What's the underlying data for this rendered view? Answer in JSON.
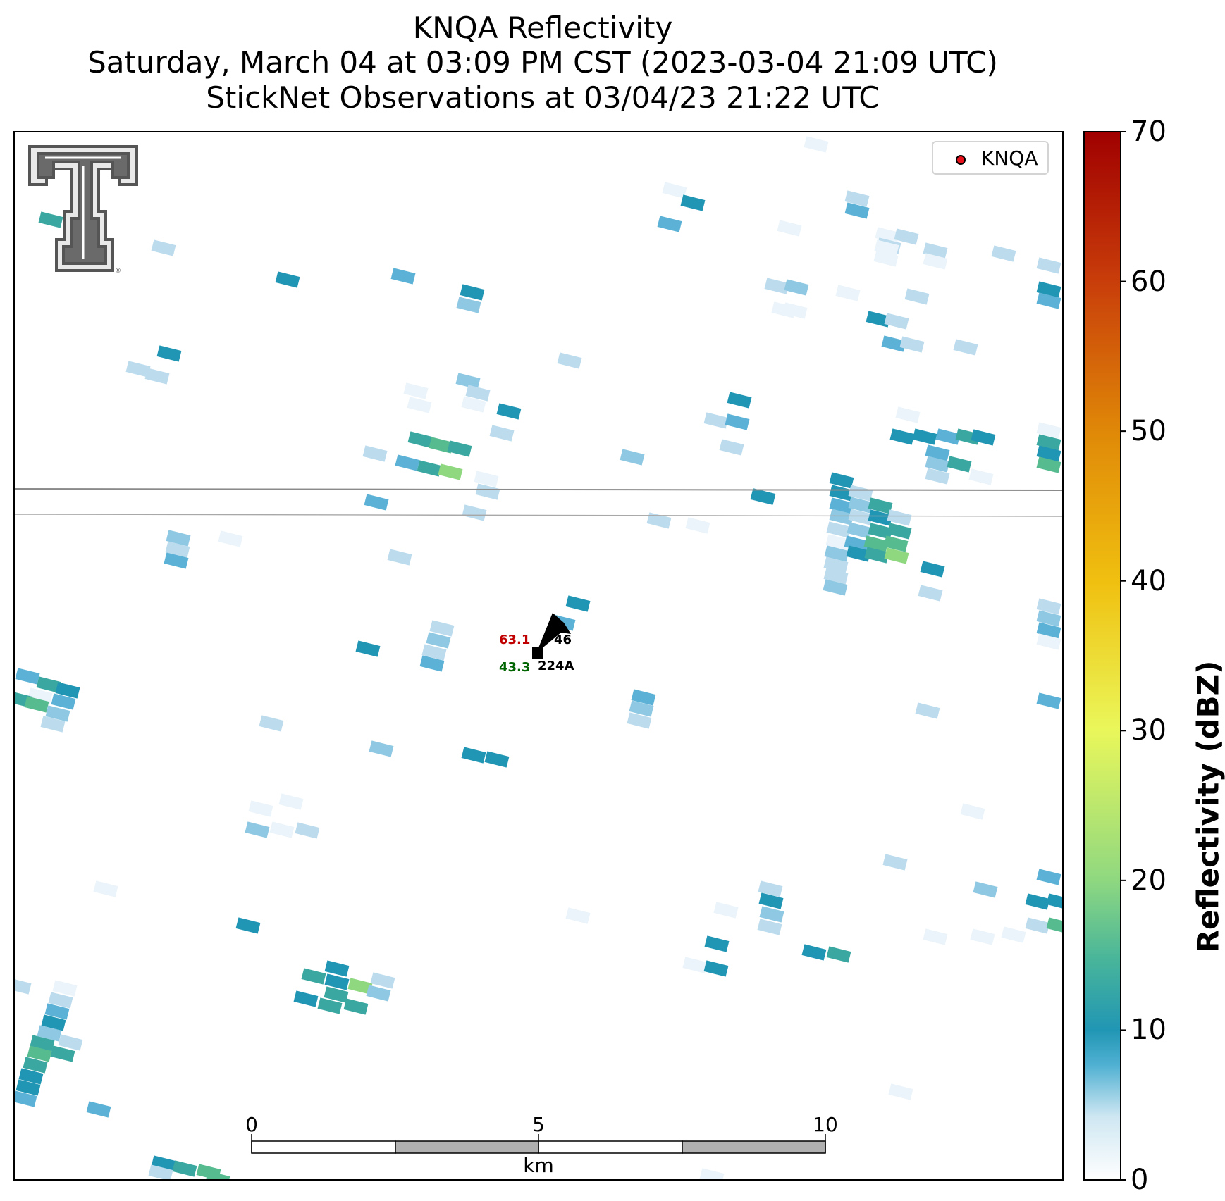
{
  "title": {
    "line1": "KNQA Reflectivity",
    "line2": "Saturday, March 04 at 03:09 PM CST (2023-03-04 21:09 UTC)",
    "line3": "StickNet Observations at 03/04/23 21:22 UTC"
  },
  "legend": {
    "label": "KNQA",
    "marker_color": "#e8101a"
  },
  "colorbar": {
    "label": "Reflectivity (dBZ)",
    "ticks": [
      "0",
      "10",
      "20",
      "30",
      "40",
      "50",
      "60",
      "70"
    ],
    "range": [
      0,
      70
    ],
    "colors": [
      "#ffffff",
      "#8ec8e2",
      "#2196b4",
      "#56bc90",
      "#8fd880",
      "#eaf75a",
      "#f0c010",
      "#e08a08",
      "#c83c0a",
      "#a00000"
    ]
  },
  "scalebar": {
    "ticks": [
      "0",
      "5",
      "10"
    ],
    "unit": "km"
  },
  "station": {
    "id": "224A",
    "temperature": "63.1",
    "dewpoint": "43.3",
    "pressure": "46",
    "temp_color": "#c00000",
    "dew_color": "#006400"
  },
  "logo": {
    "name": "Texas Tech Double T",
    "color": "#555555"
  }
}
